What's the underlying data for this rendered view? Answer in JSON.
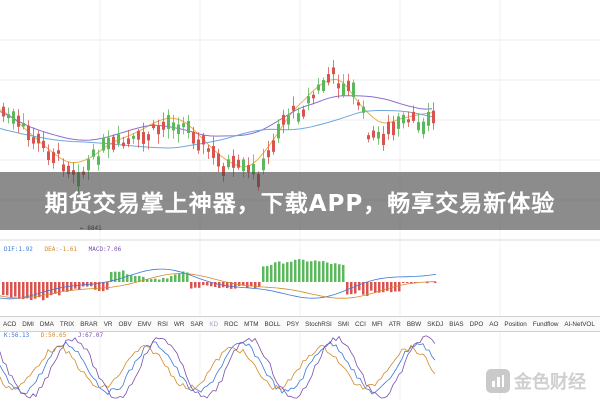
{
  "banner": {
    "title": "期货交易掌上神器，下载APP，畅享交易新体验"
  },
  "price_marker": "← 8841",
  "macd_legend": {
    "dif": "DIF:1.92",
    "dea": "DEA:-1.61",
    "macd": "MACD:7.06"
  },
  "kdj_legend": {
    "k": "K:56.13",
    "d": "D:50.65",
    "j": "J:67.07"
  },
  "indicator_tabs": [
    "ACD",
    "DMI",
    "DMA",
    "TRIX",
    "BRAR",
    "VR",
    "OBV",
    "EMV",
    "RSI",
    "WR",
    "SAR",
    "KD",
    "ROC",
    "MTM",
    "BOLL",
    "PSY",
    "StochRSI",
    "SMI",
    "CCI",
    "MFI",
    "ATR",
    "BBW",
    "SKDJ",
    "BIAS",
    "DPO",
    "AO",
    "Position",
    "Fundflow",
    "AI-NetVOL"
  ],
  "selected_tab": "KD",
  "logo": {
    "text": "金色财经"
  },
  "colors": {
    "up": "#5cb85c",
    "down": "#d9534f",
    "ma1": "#e8b04a",
    "ma2": "#8c6fd1",
    "ma3": "#6fa8dc"
  }
}
